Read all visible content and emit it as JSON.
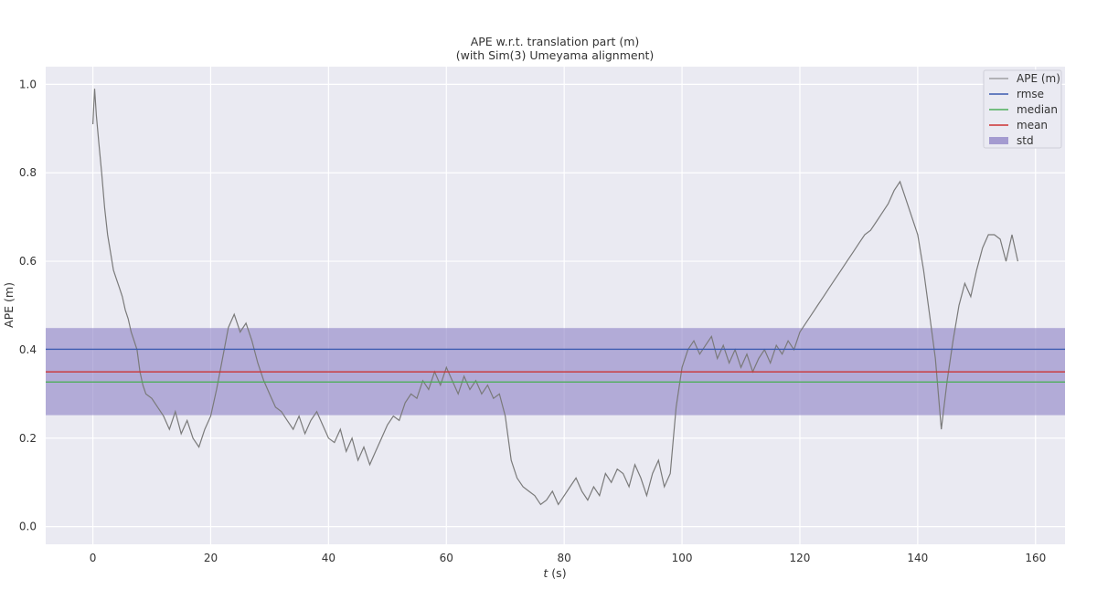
{
  "chart_data": {
    "type": "line",
    "title": "APE w.r.t. translation part (m)",
    "subtitle": "(with Sim(3) Umeyama alignment)",
    "xlabel_italic": "t",
    "xlabel_rest": " (s)",
    "ylabel": "APE (m)",
    "xlim": [
      -8,
      165
    ],
    "ylim": [
      -0.04,
      1.04
    ],
    "x_ticks": [
      0,
      20,
      40,
      60,
      80,
      100,
      120,
      140,
      160
    ],
    "y_ticks": [
      0.0,
      0.2,
      0.4,
      0.6,
      0.8,
      1.0
    ],
    "x_tick_labels": [
      "0",
      "20",
      "40",
      "60",
      "80",
      "100",
      "120",
      "140",
      "160"
    ],
    "y_tick_labels": [
      "0.0",
      "0.2",
      "0.4",
      "0.6",
      "0.8",
      "1.0"
    ],
    "grid": true,
    "legend_position": "top-right",
    "legend": [
      {
        "label": "APE (m)",
        "kind": "line",
        "color": "#7a7a7a"
      },
      {
        "label": "rmse",
        "kind": "line",
        "color": "#3b5bb0"
      },
      {
        "label": "median",
        "kind": "line",
        "color": "#4cae5a"
      },
      {
        "label": "mean",
        "kind": "line",
        "color": "#cc3333"
      },
      {
        "label": "std",
        "kind": "patch",
        "color": "#8c80c4"
      }
    ],
    "stats": {
      "rmse": 0.401,
      "median": 0.327,
      "mean": 0.35,
      "std_low": 0.252,
      "std_high": 0.449
    },
    "series": [
      {
        "name": "APE (m)",
        "color": "#7a7a7a",
        "x": [
          0,
          0.3,
          0.6,
          1,
          1.5,
          2,
          2.5,
          3,
          3.5,
          4,
          4.5,
          5,
          5.5,
          6,
          6.5,
          7,
          7.5,
          8,
          8.5,
          9,
          10,
          11,
          12,
          13,
          14,
          15,
          16,
          17,
          18,
          19,
          20,
          21,
          22,
          23,
          24,
          25,
          26,
          27,
          28,
          29,
          30,
          31,
          32,
          33,
          34,
          35,
          36,
          37,
          38,
          39,
          40,
          41,
          42,
          43,
          44,
          45,
          46,
          47,
          48,
          49,
          50,
          51,
          52,
          53,
          54,
          55,
          56,
          57,
          58,
          59,
          60,
          61,
          62,
          63,
          64,
          65,
          66,
          67,
          68,
          69,
          70,
          71,
          72,
          73,
          74,
          75,
          76,
          77,
          78,
          79,
          80,
          81,
          82,
          83,
          84,
          85,
          86,
          87,
          88,
          89,
          90,
          91,
          92,
          93,
          94,
          95,
          96,
          97,
          98,
          99,
          100,
          101,
          102,
          103,
          104,
          105,
          106,
          107,
          108,
          109,
          110,
          111,
          112,
          113,
          114,
          115,
          116,
          117,
          118,
          119,
          120,
          121,
          122,
          123,
          124,
          125,
          126,
          127,
          128,
          129,
          130,
          131,
          132,
          133,
          134,
          135,
          136,
          137,
          138,
          139,
          140,
          141,
          142,
          143,
          144,
          145,
          146,
          147,
          148,
          149,
          150,
          151,
          152,
          153,
          154,
          155,
          156,
          157
        ],
        "values": [
          0.91,
          0.99,
          0.93,
          0.87,
          0.8,
          0.72,
          0.66,
          0.62,
          0.58,
          0.56,
          0.54,
          0.52,
          0.49,
          0.47,
          0.44,
          0.42,
          0.4,
          0.35,
          0.32,
          0.3,
          0.29,
          0.27,
          0.25,
          0.22,
          0.26,
          0.21,
          0.24,
          0.2,
          0.18,
          0.22,
          0.25,
          0.31,
          0.38,
          0.45,
          0.48,
          0.44,
          0.46,
          0.42,
          0.37,
          0.33,
          0.3,
          0.27,
          0.26,
          0.24,
          0.22,
          0.25,
          0.21,
          0.24,
          0.26,
          0.23,
          0.2,
          0.19,
          0.22,
          0.17,
          0.2,
          0.15,
          0.18,
          0.14,
          0.17,
          0.2,
          0.23,
          0.25,
          0.24,
          0.28,
          0.3,
          0.29,
          0.33,
          0.31,
          0.35,
          0.32,
          0.36,
          0.33,
          0.3,
          0.34,
          0.31,
          0.33,
          0.3,
          0.32,
          0.29,
          0.3,
          0.25,
          0.15,
          0.11,
          0.09,
          0.08,
          0.07,
          0.05,
          0.06,
          0.08,
          0.05,
          0.07,
          0.09,
          0.11,
          0.08,
          0.06,
          0.09,
          0.07,
          0.12,
          0.1,
          0.13,
          0.12,
          0.09,
          0.14,
          0.11,
          0.07,
          0.12,
          0.15,
          0.09,
          0.12,
          0.27,
          0.36,
          0.4,
          0.42,
          0.39,
          0.41,
          0.43,
          0.38,
          0.41,
          0.37,
          0.4,
          0.36,
          0.39,
          0.35,
          0.38,
          0.4,
          0.37,
          0.41,
          0.39,
          0.42,
          0.4,
          0.44,
          0.46,
          0.48,
          0.5,
          0.52,
          0.54,
          0.56,
          0.58,
          0.6,
          0.62,
          0.64,
          0.66,
          0.67,
          0.69,
          0.71,
          0.73,
          0.76,
          0.78,
          0.74,
          0.7,
          0.66,
          0.58,
          0.48,
          0.38,
          0.22,
          0.33,
          0.42,
          0.5,
          0.55,
          0.52,
          0.58,
          0.63,
          0.66,
          0.66,
          0.65,
          0.6,
          0.66,
          0.6
        ]
      }
    ]
  }
}
